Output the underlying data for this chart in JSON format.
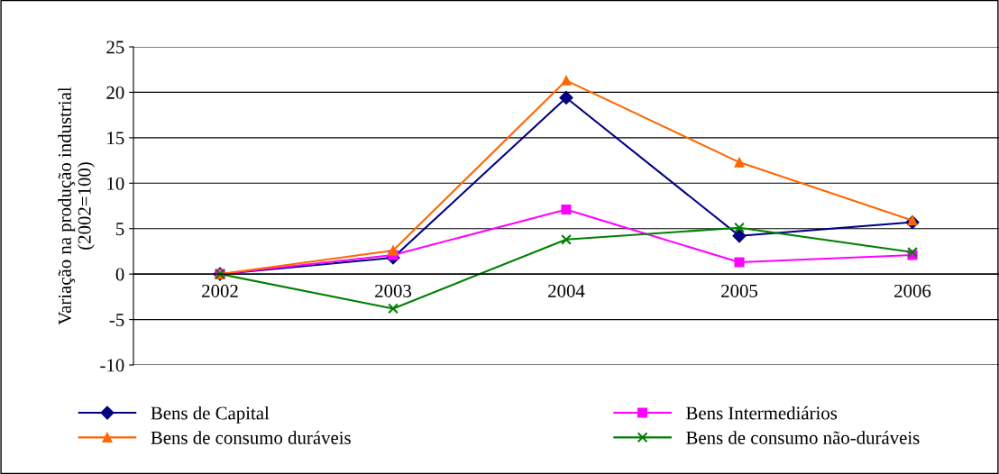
{
  "chart_data": {
    "type": "line",
    "ylabel": "Variação na produção industrial\n(2002=100)",
    "categories": [
      "2002",
      "2003",
      "2004",
      "2005",
      "2006"
    ],
    "series": [
      {
        "name": "Bens de Capital",
        "color": "#000080",
        "marker": "diamond",
        "values": [
          0,
          1.8,
          19.4,
          4.2,
          5.7
        ]
      },
      {
        "name": "Bens Intermediários",
        "color": "#ff00ff",
        "marker": "square",
        "values": [
          0,
          2.1,
          7.1,
          1.3,
          2.1
        ]
      },
      {
        "name": "Bens de consumo duráveis",
        "color": "#ff6600",
        "marker": "triangle",
        "values": [
          0,
          2.6,
          21.3,
          12.3,
          5.9
        ]
      },
      {
        "name": "Bens de consumo não-duráveis",
        "color": "#008000",
        "marker": "cross",
        "values": [
          0,
          -3.8,
          3.8,
          5.1,
          2.4
        ]
      }
    ],
    "ylim": [
      -10,
      25
    ],
    "yticks": [
      -10,
      -5,
      0,
      5,
      10,
      15,
      20,
      25
    ],
    "grid": "y",
    "legend": "bottom"
  }
}
